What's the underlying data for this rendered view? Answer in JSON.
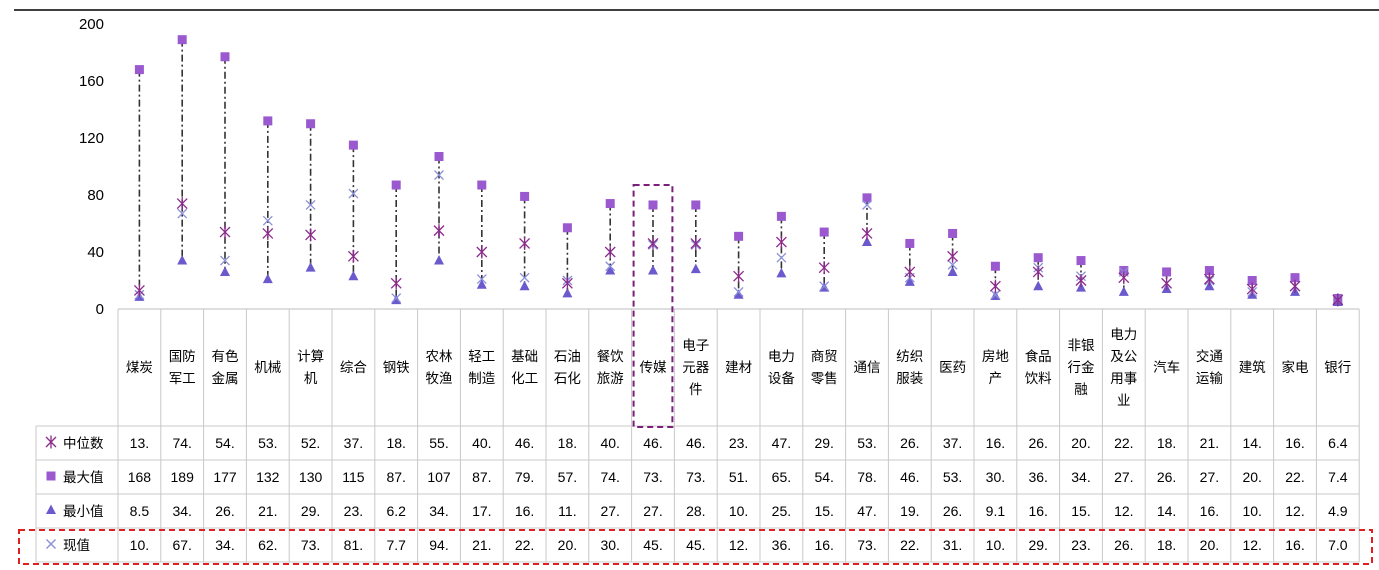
{
  "chart_data": {
    "type": "scatter",
    "ylim": [
      0,
      200
    ],
    "yticks": [
      0,
      40,
      80,
      120,
      160,
      200
    ],
    "grid": false,
    "categories": [
      "煤炭",
      "国防军工",
      "有色金属",
      "机械",
      "计算机",
      "综合",
      "钢铁",
      "农林牧渔",
      "轻工制造",
      "基础化工",
      "石油石化",
      "餐饮旅游",
      "传媒",
      "电子元器件",
      "建材",
      "电力设备",
      "商贸零售",
      "通信",
      "纺织服装",
      "医药",
      "房地产",
      "食品饮料",
      "非银行金融",
      "电力及公用事业",
      "汽车",
      "交通运输",
      "建筑",
      "家电",
      "银行"
    ],
    "category_lines": [
      [
        "煤炭"
      ],
      [
        "国防",
        "军工"
      ],
      [
        "有色",
        "金属"
      ],
      [
        "机械"
      ],
      [
        "计算",
        "机"
      ],
      [
        "综合"
      ],
      [
        "钢铁"
      ],
      [
        "农林",
        "牧渔"
      ],
      [
        "轻工",
        "制造"
      ],
      [
        "基础",
        "化工"
      ],
      [
        "石油",
        "石化"
      ],
      [
        "餐饮",
        "旅游"
      ],
      [
        "传媒"
      ],
      [
        "电子",
        "元器",
        "件"
      ],
      [
        "建材"
      ],
      [
        "电力",
        "设备"
      ],
      [
        "商贸",
        "零售"
      ],
      [
        "通信"
      ],
      [
        "纺织",
        "服装"
      ],
      [
        "医药"
      ],
      [
        "房地",
        "产"
      ],
      [
        "食品",
        "饮料"
      ],
      [
        "非银",
        "行金",
        "融"
      ],
      [
        "电力",
        "及公",
        "用事",
        "业"
      ],
      [
        "汽车"
      ],
      [
        "交通",
        "运输"
      ],
      [
        "建筑"
      ],
      [
        "家电"
      ],
      [
        "银行"
      ]
    ],
    "series": [
      {
        "name": "中位数",
        "marker": "asterisk",
        "color": "#8B2A8B",
        "values": [
          13,
          74,
          54,
          53,
          52,
          37,
          18,
          55,
          40,
          46,
          18,
          40,
          46,
          46,
          23,
          47,
          29,
          53,
          26,
          37,
          16,
          26,
          20,
          22,
          18,
          21,
          14,
          16,
          6.4
        ],
        "labels": [
          "13.",
          "74.",
          "54.",
          "53.",
          "52.",
          "37.",
          "18.",
          "55.",
          "40.",
          "46.",
          "18.",
          "40.",
          "46.",
          "46.",
          "23.",
          "47.",
          "29.",
          "53.",
          "26.",
          "37.",
          "16.",
          "26.",
          "20.",
          "22.",
          "18.",
          "21.",
          "14.",
          "16.",
          "6.4"
        ]
      },
      {
        "name": "最大值",
        "marker": "square",
        "color": "#9B59D0",
        "values": [
          168,
          189,
          177,
          132,
          130,
          115,
          87,
          107,
          87,
          79,
          57,
          74,
          73,
          73,
          51,
          65,
          54,
          78,
          46,
          53,
          30,
          36,
          34,
          27,
          26,
          27,
          20,
          22,
          7.4
        ],
        "labels": [
          "168",
          "189",
          "177",
          "132",
          "130",
          "115",
          "87.",
          "107",
          "87.",
          "79.",
          "57.",
          "74.",
          "73.",
          "73.",
          "51.",
          "65.",
          "54.",
          "78.",
          "46.",
          "53.",
          "30.",
          "36.",
          "34.",
          "27.",
          "26.",
          "27.",
          "20.",
          "22.",
          "7.4"
        ]
      },
      {
        "name": "最小值",
        "marker": "triangle",
        "color": "#6A5ACD",
        "values": [
          8.5,
          34,
          26,
          21,
          29,
          23,
          6.2,
          34,
          17,
          16,
          11,
          27,
          27,
          28,
          10,
          25,
          15,
          47,
          19,
          26,
          9.1,
          16,
          15,
          12,
          14,
          16,
          10,
          12,
          4.9
        ],
        "labels": [
          "8.5",
          "34.",
          "26.",
          "21.",
          "29.",
          "23.",
          "6.2",
          "34.",
          "17.",
          "16.",
          "11.",
          "27.",
          "27.",
          "28.",
          "10.",
          "25.",
          "15.",
          "47.",
          "19.",
          "26.",
          "9.1",
          "16.",
          "15.",
          "12.",
          "14.",
          "16.",
          "10.",
          "12.",
          "4.9"
        ]
      },
      {
        "name": "现值",
        "marker": "x",
        "color": "#8A8FD8",
        "values": [
          10,
          67,
          34,
          62,
          73,
          81,
          7.7,
          94,
          21,
          22,
          20,
          30,
          45,
          45,
          12,
          36,
          16,
          73,
          22,
          31,
          10,
          29,
          23,
          26,
          18,
          20,
          12,
          16,
          7.0
        ],
        "labels": [
          "10.",
          "67.",
          "34.",
          "62.",
          "73.",
          "81.",
          "7.7",
          "94.",
          "21.",
          "22.",
          "20.",
          "30.",
          "45.",
          "45.",
          "12.",
          "36.",
          "16.",
          "73.",
          "22.",
          "31.",
          "10.",
          "29.",
          "23.",
          "26.",
          "18.",
          "20.",
          "12.",
          "16.",
          "7.0"
        ]
      }
    ],
    "highlight_category": "传媒",
    "highlight_series": "现值"
  }
}
